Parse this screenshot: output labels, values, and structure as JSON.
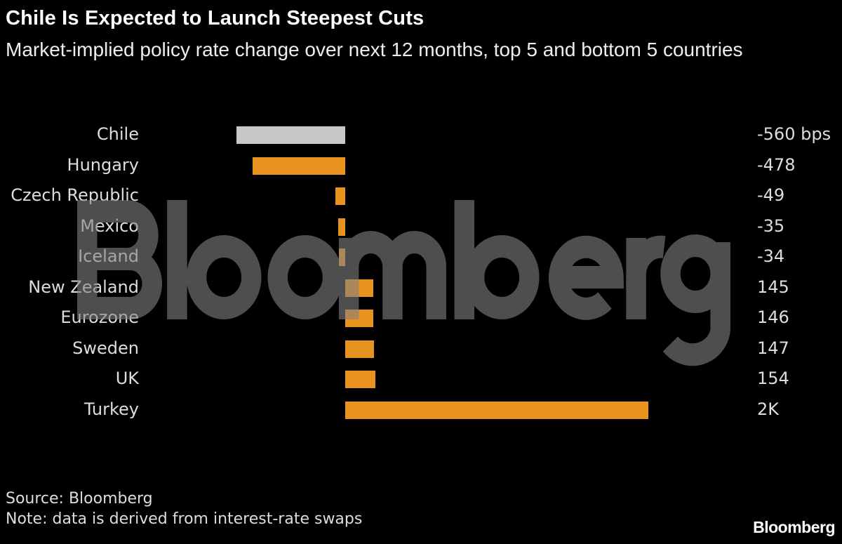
{
  "title": "Chile Is Expected to Launch Steepest Cuts",
  "subtitle": "Market-implied policy rate change over next 12 months, top 5 and bottom 5 countries",
  "source": "Source: Bloomberg",
  "note": "Note: data is derived from interest-rate swaps",
  "logo": "Bloomberg",
  "watermark": "Bloomberg",
  "colors": {
    "highlight": "#c8c8c8",
    "bar": "#e8921f",
    "background": "#000000"
  },
  "chart_data": {
    "type": "bar",
    "orientation": "horizontal",
    "title": "Chile Is Expected to Launch Steepest Cuts",
    "subtitle": "Market-implied policy rate change over next 12 months, top 5 and bottom 5 countries",
    "unit": "bps",
    "categories": [
      "Chile",
      "Hungary",
      "Czech Republic",
      "Mexico",
      "Iceland",
      "New Zealand",
      "Eurozone",
      "Sweden",
      "UK",
      "Turkey"
    ],
    "values": [
      -560,
      -478,
      -49,
      -35,
      -34,
      145,
      146,
      147,
      154,
      1560
    ],
    "data_labels": [
      "-560 bps",
      "-478",
      "-49",
      "-35",
      "-34",
      "145",
      "146",
      "147",
      "154",
      "2K"
    ],
    "highlight": "Chile",
    "grid": false
  }
}
